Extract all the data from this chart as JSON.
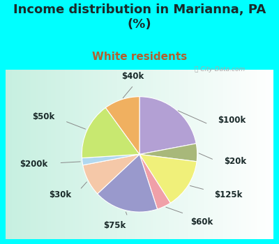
{
  "title": "Income distribution in Marianna, PA\n(%)",
  "subtitle": "White residents",
  "background_cyan": "#00FFFF",
  "title_color": "#1a2a2a",
  "subtitle_color": "#b06030",
  "watermark": "ⓘ City-Data.com",
  "slices": [
    {
      "label": "$100k",
      "value": 22,
      "color": "#b3a0d4"
    },
    {
      "label": "$20k",
      "value": 5,
      "color": "#a8b87a"
    },
    {
      "label": "$125k",
      "value": 14,
      "color": "#f0f07a"
    },
    {
      "label": "$60k",
      "value": 4,
      "color": "#f0a0a8"
    },
    {
      "label": "$75k",
      "value": 18,
      "color": "#9999cc"
    },
    {
      "label": "$30k",
      "value": 9,
      "color": "#f5c8a8"
    },
    {
      "label": "$200k",
      "value": 2,
      "color": "#b0d8f0"
    },
    {
      "label": "$50k",
      "value": 16,
      "color": "#c8e870"
    },
    {
      "label": "$40k",
      "value": 10,
      "color": "#f0b060"
    }
  ],
  "label_fontsize": 8.5,
  "title_fontsize": 13,
  "subtitle_fontsize": 11
}
